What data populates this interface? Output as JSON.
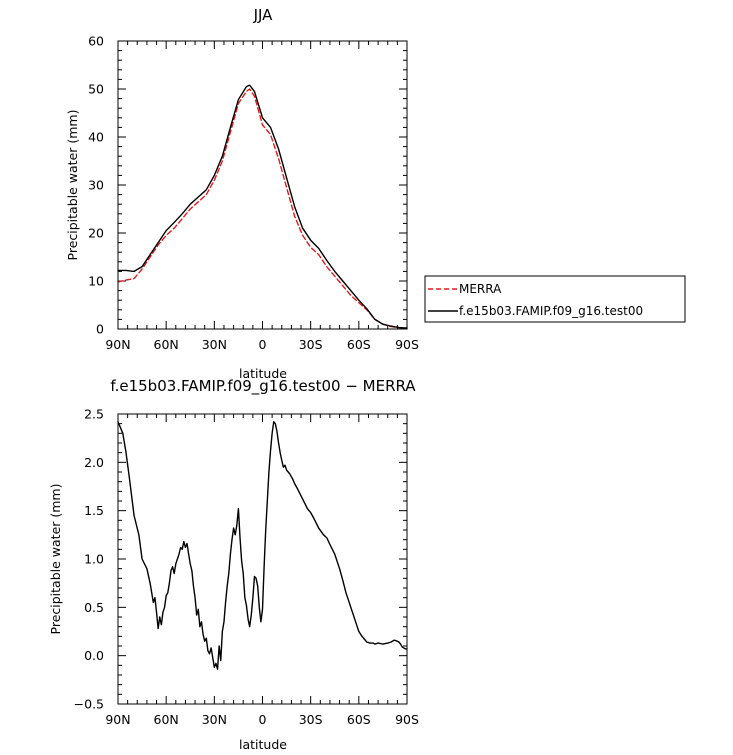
{
  "chart_data": [
    {
      "type": "line",
      "title": "JJA",
      "xlabel": "latitude",
      "ylabel": "Precipitable water (mm)",
      "xlim": [
        90,
        -90
      ],
      "ylim": [
        0,
        60
      ],
      "xticks": [
        90,
        60,
        30,
        0,
        -30,
        -60,
        -90
      ],
      "xtick_labels": [
        "90N",
        "60N",
        "30N",
        "0",
        "30S",
        "60S",
        "90S"
      ],
      "yticks": [
        0,
        10,
        20,
        30,
        40,
        50,
        60
      ],
      "ytick_labels": [
        "0",
        "10",
        "20",
        "30",
        "40",
        "50",
        "60"
      ],
      "grid": false,
      "legend_position": "right",
      "x": [
        90,
        85,
        80,
        75,
        70,
        65,
        60,
        55,
        50,
        45,
        40,
        35,
        30,
        25,
        20,
        15,
        10,
        8,
        5,
        0,
        -5,
        -10,
        -15,
        -20,
        -25,
        -30,
        -35,
        -40,
        -45,
        -50,
        -55,
        -60,
        -65,
        -70,
        -75,
        -80,
        -85,
        -90
      ],
      "series": [
        {
          "name": "MERRA",
          "color": "#e31a1c",
          "dash": "dashed",
          "values": [
            9.8,
            10.2,
            10.5,
            12.5,
            15,
            17.5,
            19.5,
            21,
            23,
            25,
            26.5,
            28,
            31,
            35,
            41,
            47,
            49.5,
            50,
            48.5,
            42.5,
            40.5,
            35.5,
            29.5,
            23.5,
            19.5,
            17,
            15.5,
            13,
            11,
            9,
            7,
            5.5,
            4,
            2,
            1,
            0.5,
            0.3,
            0.2
          ]
        },
        {
          "name": "f.e15b03.FAMIP.f09_g16.test00",
          "color": "#000000",
          "dash": "solid",
          "values": [
            12.2,
            12.2,
            12,
            13,
            15.5,
            18,
            20.5,
            22.2,
            24,
            26,
            27.5,
            29,
            32,
            36,
            42,
            47.8,
            50.5,
            50.8,
            49.5,
            44,
            42,
            37.5,
            31.5,
            25.5,
            21,
            18.5,
            16.8,
            14.3,
            12,
            10,
            8,
            6,
            4.2,
            2,
            1,
            0.6,
            0.3,
            0.2
          ]
        }
      ]
    },
    {
      "type": "line",
      "title": "f.e15b03.FAMIP.f09_g16.test00 − MERRA",
      "xlabel": "latitude",
      "ylabel": "Precipitable water (mm)",
      "xlim": [
        90,
        -90
      ],
      "ylim": [
        -0.5,
        2.5
      ],
      "xticks": [
        90,
        60,
        30,
        0,
        -30,
        -60,
        -90
      ],
      "xtick_labels": [
        "90N",
        "60N",
        "30N",
        "0",
        "30S",
        "60S",
        "90S"
      ],
      "yticks": [
        -0.5,
        0,
        0.5,
        1,
        1.5,
        2,
        2.5
      ],
      "ytick_labels": [
        "−0.5",
        "0.0",
        "0.5",
        "1.0",
        "1.5",
        "2.0",
        "2.5"
      ],
      "grid": false,
      "x": [
        90,
        87,
        85,
        83,
        80,
        77,
        75,
        72,
        70,
        68,
        67,
        66,
        65,
        64,
        63,
        62,
        61,
        60,
        59,
        58,
        57,
        56,
        55,
        54,
        53,
        52,
        51,
        50,
        49,
        48,
        47,
        46,
        45,
        44,
        43,
        42,
        41,
        40,
        39,
        38,
        37,
        36,
        35,
        34,
        33,
        32,
        31,
        30,
        29,
        28,
        27,
        26,
        25,
        24,
        23,
        22,
        21,
        20,
        19,
        18,
        17,
        16,
        15,
        14,
        13,
        12,
        11,
        10,
        9,
        8,
        7,
        6,
        5,
        4,
        3,
        2,
        1,
        0,
        -1,
        -2,
        -3,
        -4,
        -5,
        -6,
        -7,
        -8,
        -9,
        -10,
        -11,
        -12,
        -13,
        -14,
        -15,
        -16,
        -17,
        -18,
        -19,
        -20,
        -22,
        -25,
        -28,
        -30,
        -32,
        -35,
        -38,
        -40,
        -42,
        -45,
        -48,
        -50,
        -52,
        -55,
        -58,
        -60,
        -62,
        -65,
        -67,
        -69,
        -70,
        -72,
        -75,
        -78,
        -80,
        -82,
        -84,
        -85,
        -86,
        -87,
        -88,
        -89,
        -90
      ],
      "series": [
        {
          "name": "",
          "color": "#000000",
          "dash": "solid",
          "values": [
            2.42,
            2.3,
            2.1,
            1.85,
            1.45,
            1.25,
            1,
            0.9,
            0.75,
            0.55,
            0.6,
            0.45,
            0.28,
            0.4,
            0.32,
            0.45,
            0.5,
            0.62,
            0.65,
            0.75,
            0.88,
            0.92,
            0.85,
            0.95,
            1.0,
            1.05,
            1.12,
            1.1,
            1.18,
            1.12,
            1.16,
            1.05,
            0.95,
            0.88,
            0.72,
            0.6,
            0.42,
            0.48,
            0.3,
            0.35,
            0.22,
            0.15,
            0.18,
            0.05,
            0.02,
            0.08,
            -0.02,
            -0.12,
            -0.08,
            -0.14,
            0.1,
            -0.05,
            0.25,
            0.35,
            0.55,
            0.72,
            0.85,
            1.05,
            1.2,
            1.32,
            1.25,
            1.35,
            1.52,
            1.22,
            0.98,
            0.85,
            0.6,
            0.52,
            0.38,
            0.3,
            0.42,
            0.6,
            0.82,
            0.8,
            0.72,
            0.5,
            0.35,
            0.48,
            0.92,
            1.3,
            1.6,
            1.9,
            2.12,
            2.3,
            2.42,
            2.4,
            2.32,
            2.2,
            2.1,
            2.02,
            1.95,
            1.97,
            1.92,
            1.9,
            1.88,
            1.85,
            1.82,
            1.78,
            1.72,
            1.62,
            1.52,
            1.48,
            1.42,
            1.32,
            1.25,
            1.22,
            1.15,
            1.05,
            0.9,
            0.78,
            0.65,
            0.5,
            0.35,
            0.25,
            0.2,
            0.14,
            0.13,
            0.13,
            0.12,
            0.13,
            0.12,
            0.13,
            0.14,
            0.16,
            0.15,
            0.14,
            0.12,
            0.09,
            0.08,
            0.07,
            0.07
          ]
        }
      ]
    }
  ]
}
